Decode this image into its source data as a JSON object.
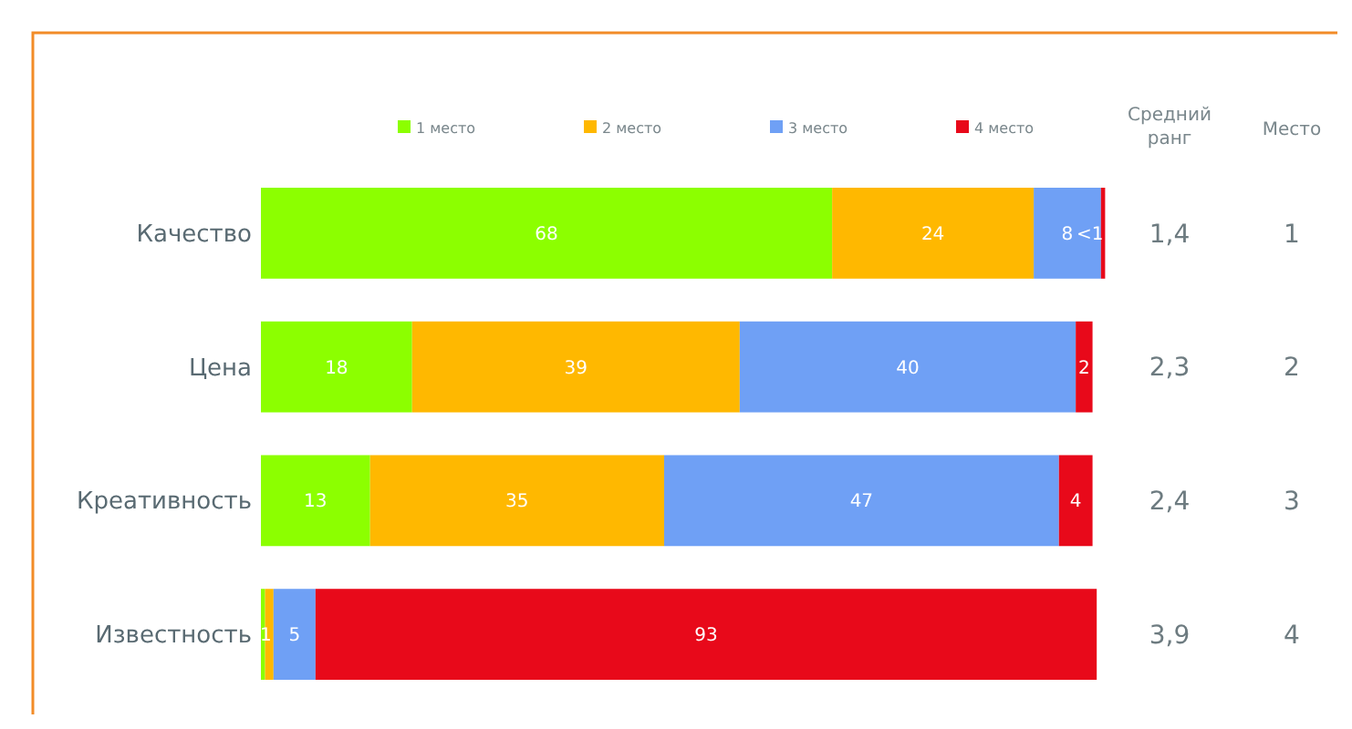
{
  "chart_data": {
    "type": "bar",
    "orientation": "horizontal",
    "stacked": true,
    "categories": [
      "Качество",
      "Цена",
      "Креативность",
      "Известность"
    ],
    "series": [
      {
        "name": "1 место",
        "color": "#8cff00",
        "values": [
          68,
          18,
          13,
          0.5
        ],
        "value_labels": [
          "68",
          "18",
          "13",
          null
        ]
      },
      {
        "name": "2 место",
        "color": "#ffb800",
        "values": [
          24,
          39,
          35,
          1
        ],
        "value_labels": [
          "24",
          "39",
          "35",
          "1"
        ]
      },
      {
        "name": "3 место",
        "color": "#6fa0f5",
        "values": [
          8,
          40,
          47,
          5
        ],
        "value_labels": [
          "8",
          "40",
          "47",
          "5"
        ]
      },
      {
        "name": "4 место",
        "color": "#e8091a",
        "values": [
          0.5,
          2,
          4,
          93
        ],
        "value_labels": [
          "<1",
          "2",
          "4",
          "93"
        ]
      }
    ],
    "xlim": [
      0,
      101
    ],
    "tick_labels": "y",
    "legend": "top",
    "annotations": [
      "Средний ранг",
      "Место",
      "1,4",
      "1",
      "2,3",
      "2",
      "2,4",
      "3",
      "3,9",
      "4"
    ]
  }
}
